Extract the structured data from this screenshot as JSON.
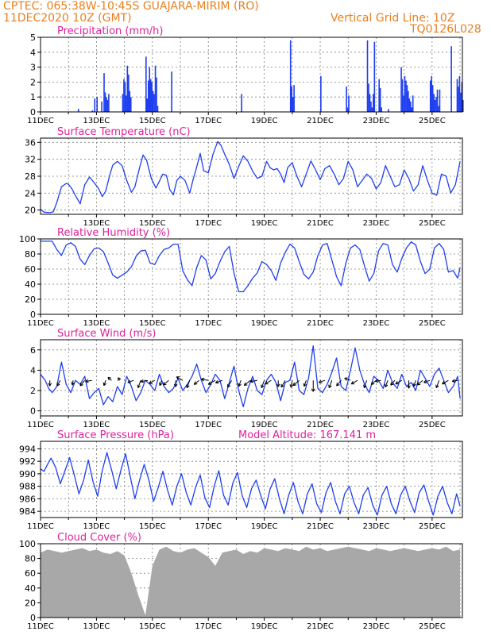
{
  "header": {
    "line1": "CPTEC:   065:38W-10:45S   GUAJARA-MIRIM (RO)",
    "line2_left": "11DEC2020 10Z (GMT)",
    "line2_right": "Vertical Grid Line: 10Z",
    "line3_right": "TQ0126L028",
    "color": "#e8801e"
  },
  "colors": {
    "series": "#1f3ff0",
    "title": "#e0209c",
    "cloud": "#a8a8a8",
    "grid": "#808080",
    "arrow": "#000000"
  },
  "chart_data": [
    {
      "type": "bar",
      "title": "Precipitation (mm/h)",
      "ylim": [
        0,
        5
      ],
      "yticks": [
        0,
        1,
        2,
        3,
        4,
        5
      ],
      "xticks": [
        "11DEC",
        "13DEC",
        "15DEC",
        "17DEC",
        "19DEC",
        "21DEC",
        "23DEC",
        "25DEC"
      ],
      "x_start_label": "11DEC",
      "days": 15,
      "hours": [
        32,
        44,
        46,
        48,
        52,
        54,
        55,
        56,
        57,
        58,
        70,
        71,
        72,
        73,
        74,
        75,
        76,
        77,
        90,
        91,
        92,
        93,
        94,
        95,
        96,
        97,
        98,
        99,
        100,
        112,
        172,
        214,
        215,
        216,
        217,
        240,
        262,
        263,
        264,
        280,
        281,
        282,
        283,
        284,
        285,
        286,
        290,
        291,
        292,
        298,
        309,
        310,
        311,
        312,
        313,
        314,
        315,
        316,
        317,
        318,
        319,
        334,
        335,
        336,
        337,
        338,
        339,
        340,
        341,
        342,
        352,
        357,
        358,
        359,
        360,
        361,
        362
      ],
      "values": [
        0.2,
        0.1,
        0.9,
        1.0,
        0.7,
        2.6,
        1.3,
        1.0,
        0.8,
        1.2,
        1.2,
        2.2,
        2.0,
        1.1,
        3.1,
        2.5,
        1.4,
        1.0,
        3.7,
        0.9,
        2.1,
        3.0,
        2.2,
        2.0,
        1.4,
        1.2,
        3.1,
        2.3,
        0.4,
        2.7,
        1.2,
        4.8,
        1.7,
        1.0,
        1.8,
        2.4,
        1.7,
        0.3,
        1.1,
        4.8,
        1.9,
        1.2,
        0.7,
        0.3,
        1.2,
        4.7,
        2.2,
        1.6,
        0.3,
        0.2,
        3.0,
        2.2,
        1.1,
        2.4,
        2.1,
        1.8,
        1.4,
        0.9,
        0.7,
        0.3,
        1.1,
        2.1,
        2.4,
        1.8,
        1.2,
        0.8,
        1.0,
        1.5,
        0.4,
        1.5,
        4.4,
        2.2,
        1.7,
        2.4,
        1.3,
        2.0,
        0.8
      ]
    },
    {
      "type": "line",
      "title": "Surface Temperature (nC)",
      "ylim": [
        19,
        37
      ],
      "yticks": [
        20,
        24,
        28,
        32,
        36
      ],
      "xticks": [
        "13DEC",
        "15DEC",
        "17DEC",
        "19DEC",
        "21DEC",
        "23DEC",
        "25DEC"
      ],
      "x": [
        0,
        3,
        8,
        11,
        14,
        18,
        22,
        24,
        27,
        30,
        34,
        38,
        42,
        46,
        50,
        53,
        56,
        59,
        62,
        66,
        70,
        74,
        78,
        81,
        85,
        88,
        91,
        95,
        99,
        102,
        105,
        108,
        111,
        114,
        117,
        120,
        124,
        128,
        131,
        134,
        137,
        140,
        144,
        148,
        152,
        155,
        158,
        162,
        166,
        170,
        174,
        178,
        182,
        186,
        190,
        194,
        197,
        200,
        203,
        206,
        209,
        212,
        216,
        220,
        224,
        228,
        232,
        236,
        240,
        244,
        248,
        252,
        256,
        260,
        264,
        268,
        272,
        276,
        280,
        284,
        288,
        292,
        296,
        300,
        304,
        308,
        312,
        316,
        320,
        324,
        328,
        332,
        336,
        340,
        344,
        348,
        352,
        356,
        360
      ],
      "y": [
        20.2,
        19.5,
        19.4,
        19.6,
        21.8,
        25.5,
        26.3,
        26.1,
        25.0,
        23.4,
        21.5,
        26.0,
        27.8,
        26.5,
        25.0,
        23.2,
        24.5,
        27.8,
        30.6,
        31.5,
        30.5,
        27.0,
        24.2,
        25.5,
        30.0,
        33.0,
        31.8,
        27.5,
        25.2,
        26.8,
        28.5,
        28.2,
        24.8,
        23.6,
        27.0,
        28.0,
        27.0,
        24.0,
        27.3,
        30.2,
        33.4,
        29.3,
        28.8,
        33.2,
        36.2,
        35.2,
        33.2,
        30.8,
        27.5,
        30.3,
        32.8,
        31.5,
        29.2,
        27.5,
        28.0,
        31.5,
        30.0,
        29.5,
        29.8,
        28.5,
        26.5,
        30.0,
        31.2,
        28.0,
        25.5,
        28.5,
        31.6,
        29.5,
        27.2,
        29.8,
        30.5,
        28.5,
        26.0,
        27.5,
        31.5,
        29.5,
        25.5,
        27.0,
        28.5,
        27.5,
        25.0,
        26.5,
        30.5,
        28.0,
        25.5,
        26.0,
        29.5,
        27.5,
        24.5,
        26.0,
        30.5,
        27.0,
        24.0,
        23.5,
        28.5,
        28.0,
        24.0,
        26.0,
        31.5
      ]
    },
    {
      "type": "line",
      "title": "Relative Humidity (%)",
      "ylim": [
        0,
        100
      ],
      "yticks": [
        0,
        20,
        40,
        60,
        80,
        100
      ],
      "xticks": [
        "11DEC",
        "13DEC",
        "15DEC",
        "17DEC",
        "19DEC",
        "21DEC",
        "23DEC",
        "25DEC"
      ],
      "x": [
        0,
        5,
        10,
        14,
        18,
        22,
        26,
        30,
        34,
        38,
        42,
        46,
        50,
        54,
        58,
        62,
        66,
        70,
        74,
        78,
        82,
        86,
        90,
        94,
        98,
        102,
        106,
        110,
        114,
        118,
        122,
        126,
        130,
        134,
        138,
        142,
        146,
        150,
        154,
        158,
        162,
        166,
        170,
        174,
        178,
        182,
        186,
        190,
        194,
        198,
        202,
        206,
        210,
        214,
        218,
        222,
        226,
        230,
        234,
        238,
        242,
        246,
        250,
        254,
        258,
        262,
        266,
        270,
        274,
        278,
        282,
        286,
        290,
        294,
        298,
        302,
        306,
        310,
        314,
        318,
        322,
        326,
        330,
        334,
        338,
        342,
        346,
        350,
        354,
        358,
        360
      ],
      "y": [
        97,
        97,
        97,
        86,
        78,
        92,
        95,
        90,
        73,
        66,
        78,
        87,
        88,
        83,
        68,
        52,
        48,
        52,
        56,
        63,
        77,
        84,
        85,
        68,
        66,
        78,
        86,
        88,
        93,
        93,
        58,
        46,
        38,
        62,
        78,
        72,
        47,
        54,
        70,
        83,
        90,
        55,
        30,
        30,
        38,
        48,
        55,
        70,
        66,
        58,
        45,
        68,
        82,
        93,
        88,
        70,
        53,
        47,
        56,
        78,
        92,
        94,
        72,
        50,
        38,
        68,
        88,
        92,
        86,
        64,
        44,
        54,
        84,
        94,
        92,
        66,
        56,
        74,
        88,
        96,
        92,
        70,
        54,
        60,
        88,
        94,
        86,
        56,
        58,
        48,
        62
      ]
    },
    {
      "type": "line",
      "title": "Surface Wind (m/s)",
      "ylim": [
        -0.5,
        7
      ],
      "yticks": [
        0,
        2,
        4,
        6
      ],
      "xticks": [
        "11DEC",
        "13DEC",
        "15DEC",
        "17DEC",
        "19DEC",
        "21DEC",
        "23DEC",
        "25DEC"
      ],
      "x": [
        0,
        4,
        7,
        10,
        14,
        18,
        22,
        26,
        30,
        34,
        38,
        42,
        46,
        50,
        54,
        58,
        62,
        66,
        70,
        74,
        78,
        82,
        86,
        90,
        94,
        98,
        102,
        106,
        110,
        114,
        118,
        122,
        126,
        130,
        134,
        138,
        142,
        146,
        150,
        154,
        158,
        162,
        166,
        170,
        174,
        178,
        182,
        186,
        190,
        194,
        198,
        202,
        206,
        210,
        214,
        218,
        222,
        226,
        230,
        234,
        238,
        242,
        246,
        250,
        254,
        258,
        262,
        266,
        270,
        274,
        278,
        282,
        286,
        290,
        294,
        298,
        302,
        306,
        310,
        314,
        318,
        322,
        326,
        330,
        334,
        338,
        342,
        346,
        350,
        354,
        358,
        360
      ],
      "y": [
        3.6,
        3.0,
        2.2,
        1.8,
        2.4,
        4.8,
        2.6,
        1.8,
        3.0,
        2.6,
        3.4,
        1.2,
        1.8,
        2.2,
        0.6,
        1.4,
        0.9,
        2.4,
        1.6,
        3.4,
        2.4,
        1.0,
        1.8,
        3.0,
        2.6,
        2.0,
        3.6,
        2.4,
        1.8,
        2.2,
        3.2,
        2.0,
        2.6,
        3.4,
        4.6,
        3.0,
        1.8,
        2.6,
        3.6,
        3.0,
        1.2,
        2.8,
        4.4,
        2.0,
        0.4,
        2.2,
        3.4,
        2.0,
        1.6,
        3.0,
        3.6,
        2.8,
        1.0,
        2.8,
        3.0,
        4.8,
        2.0,
        1.6,
        3.2,
        6.4,
        2.2,
        1.8,
        2.6,
        3.8,
        5.2,
        2.4,
        2.0,
        4.0,
        6.2,
        4.0,
        2.6,
        1.8,
        3.4,
        3.0,
        2.2,
        4.0,
        2.8,
        2.2,
        3.6,
        2.4,
        2.8,
        2.0,
        4.0,
        3.2,
        2.4,
        3.6,
        4.2,
        3.0,
        1.8,
        2.4,
        3.4,
        1.2
      ],
      "vectors": {
        "x": [
          8,
          17,
          28,
          38,
          44,
          56,
          61,
          68,
          80,
          86,
          92,
          98,
          104,
          110,
          116,
          122,
          128,
          136,
          144,
          150,
          156,
          164,
          172,
          180,
          186,
          192,
          198,
          204,
          210,
          216,
          222,
          228,
          234,
          244,
          250,
          258,
          266,
          272,
          280,
          288,
          292,
          298,
          304,
          310,
          316,
          322,
          328,
          334,
          342,
          350,
          358
        ],
        "dir": [
          180,
          210,
          190,
          220,
          260,
          200,
          310,
          330,
          250,
          200,
          260,
          240,
          200,
          230,
          180,
          300,
          200,
          230,
          280,
          240,
          250,
          210,
          200,
          230,
          260,
          200,
          240,
          180,
          210,
          190,
          230,
          200,
          180,
          250,
          200,
          220,
          290,
          240,
          200,
          230,
          260,
          200,
          220,
          240,
          180,
          200,
          230,
          250,
          200,
          240,
          260
        ],
        "len": [
          0.7,
          0.8,
          0.6,
          0.9,
          0.8,
          0.7,
          0.6,
          0.4,
          0.8,
          1.0,
          0.9,
          0.8,
          0.7,
          0.9,
          0.8,
          0.9,
          1.0,
          0.8,
          0.9,
          1.0,
          0.9,
          1.0,
          0.8,
          1.0,
          0.9,
          1.0,
          0.9,
          0.8,
          1.0,
          0.9,
          1.0,
          0.8,
          1.4,
          0.8,
          1.0,
          0.9,
          0.8,
          0.9,
          1.0,
          0.8,
          0.7,
          0.9,
          0.8,
          0.9,
          1.0,
          0.8,
          0.9,
          0.8,
          1.0,
          0.9,
          0.7
        ]
      }
    },
    {
      "type": "line",
      "title": "Surface Pressure (hPa)",
      "annotation": "Model Altitude: 167.141  m",
      "ylim": [
        983,
        995.2
      ],
      "yticks": [
        984,
        986,
        988,
        990,
        992,
        994
      ],
      "xticks": [
        "11DEC",
        "13DEC",
        "15DEC",
        "17DEC",
        "19DEC",
        "21DEC",
        "23DEC",
        "25DEC"
      ],
      "x": [
        0,
        3,
        6,
        9,
        13,
        17,
        21,
        25,
        29,
        33,
        37,
        41,
        45,
        49,
        53,
        57,
        61,
        65,
        69,
        73,
        77,
        81,
        85,
        89,
        93,
        97,
        101,
        105,
        109,
        113,
        117,
        121,
        125,
        129,
        133,
        137,
        141,
        145,
        149,
        153,
        157,
        161,
        165,
        169,
        173,
        177,
        181,
        185,
        189,
        193,
        197,
        201,
        205,
        209,
        213,
        217,
        221,
        225,
        229,
        233,
        237,
        241,
        245,
        249,
        253,
        257,
        261,
        265,
        269,
        273,
        277,
        281,
        285,
        289,
        293,
        297,
        301,
        305,
        309,
        313,
        317,
        321,
        325,
        329,
        333,
        337,
        341,
        345,
        349,
        353,
        357,
        360
      ],
      "y": [
        990.8,
        990.4,
        991.5,
        992.5,
        991.0,
        988.4,
        990.5,
        992.6,
        989.8,
        986.8,
        989.0,
        992.2,
        988.8,
        986.4,
        990.5,
        993.4,
        990.6,
        987.6,
        990.6,
        993.2,
        989.6,
        986.0,
        989.0,
        991.5,
        989.0,
        985.6,
        987.8,
        990.4,
        987.4,
        985.0,
        988.0,
        990.0,
        987.0,
        985.0,
        987.8,
        989.8,
        986.2,
        984.6,
        988.0,
        990.5,
        986.6,
        985.0,
        988.5,
        990.2,
        986.5,
        984.6,
        987.6,
        989.0,
        986.5,
        984.4,
        987.6,
        989.2,
        986.0,
        983.6,
        986.6,
        988.6,
        985.5,
        983.6,
        986.8,
        988.4,
        985.2,
        983.8,
        987.0,
        988.6,
        985.6,
        983.6,
        986.8,
        988.0,
        985.4,
        983.6,
        986.6,
        987.8,
        985.0,
        983.4,
        986.6,
        988.0,
        985.2,
        983.6,
        986.6,
        988.0,
        985.6,
        983.8,
        987.0,
        988.2,
        985.6,
        983.4,
        986.4,
        988.0,
        985.4,
        983.6,
        986.8,
        984.8
      ]
    },
    {
      "type": "area",
      "title": "Cloud Cover (%)",
      "ylim": [
        0,
        100
      ],
      "yticks": [
        0,
        20,
        40,
        60,
        80,
        100
      ],
      "xticks": [
        "11DEC",
        "13DEC",
        "15DEC",
        "17DEC",
        "19DEC",
        "21DEC",
        "23DEC",
        "25DEC"
      ],
      "x": [
        0,
        6,
        12,
        18,
        24,
        30,
        36,
        42,
        48,
        54,
        60,
        66,
        72,
        78,
        84,
        90,
        96,
        102,
        108,
        114,
        120,
        126,
        132,
        138,
        144,
        150,
        156,
        162,
        168,
        174,
        180,
        186,
        192,
        198,
        204,
        210,
        216,
        222,
        228,
        234,
        240,
        246,
        252,
        258,
        264,
        270,
        276,
        282,
        288,
        294,
        300,
        306,
        312,
        318,
        324,
        330,
        336,
        342,
        348,
        354,
        360
      ],
      "y": [
        88,
        92,
        90,
        88,
        90,
        92,
        94,
        90,
        92,
        88,
        86,
        90,
        84,
        60,
        30,
        3,
        70,
        92,
        96,
        90,
        88,
        92,
        94,
        88,
        82,
        70,
        88,
        90,
        92,
        86,
        90,
        88,
        94,
        92,
        90,
        94,
        92,
        90,
        96,
        92,
        94,
        90,
        92,
        94,
        96,
        94,
        92,
        90,
        94,
        92,
        90,
        92,
        94,
        92,
        90,
        92,
        94,
        92,
        96,
        90,
        92
      ]
    }
  ]
}
